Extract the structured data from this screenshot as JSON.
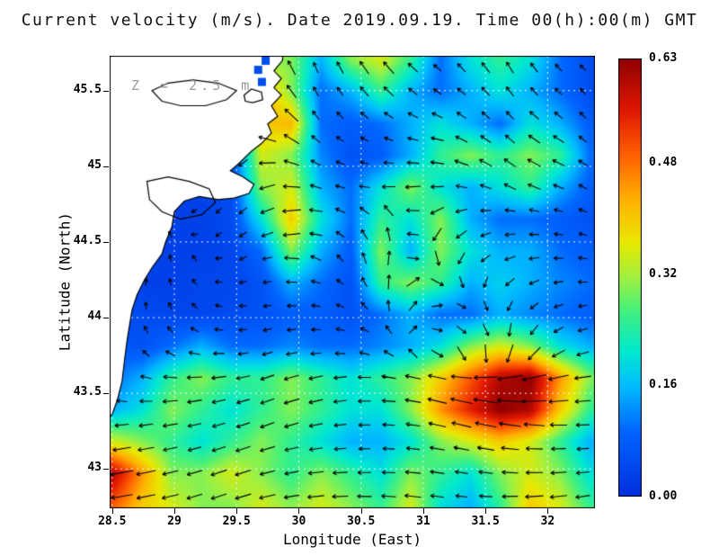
{
  "chart_data": {
    "type": "heatmap",
    "title": "Current velocity (m/s). Date 2019.09.19. Time 00(h):00(m) GMT",
    "annotation": "Z = 2.5 m",
    "xlabel": "Longitude (East)",
    "ylabel": "Latitude (North)",
    "units": "m/s",
    "x_tick_values": [
      28.5,
      29,
      29.5,
      30,
      30.5,
      31,
      31.5,
      32
    ],
    "x_tick_labels": [
      "28.5",
      "29",
      "29.5",
      "30",
      "30.5",
      "31",
      "31.5",
      "32"
    ],
    "y_tick_values": [
      43,
      43.5,
      44,
      44.5,
      45,
      45.5
    ],
    "y_tick_labels": [
      "43",
      "43.5",
      "44",
      "44.5",
      "45",
      "45.5"
    ],
    "colorbar": {
      "tick_values": [
        0.63,
        0.48,
        0.32,
        0.16,
        0
      ],
      "tick_labels": [
        "0.63",
        "0.48",
        "0.32",
        "0.16",
        "0.00"
      ],
      "min": 0,
      "max": 0.63
    },
    "lon_range": [
      28.48,
      32.38
    ],
    "lat_range": [
      42.74,
      45.73
    ],
    "vmin": 0,
    "vmax": 0.63,
    "gridline_lons": [
      28.5,
      29,
      29.5,
      30,
      30.5,
      31,
      31.5,
      32
    ],
    "gridline_lats": [
      43,
      43.5,
      44,
      44.5,
      45,
      45.5
    ],
    "colormap": [
      [
        0.0,
        "#0030dd"
      ],
      [
        0.15,
        "#0066ff"
      ],
      [
        0.25,
        "#00bbff"
      ],
      [
        0.33,
        "#00e8d0"
      ],
      [
        0.42,
        "#40f080"
      ],
      [
        0.5,
        "#a0f040"
      ],
      [
        0.58,
        "#e8e800"
      ],
      [
        0.68,
        "#ffb000"
      ],
      [
        0.78,
        "#ff6000"
      ],
      [
        0.88,
        "#e01800"
      ],
      [
        1.0,
        "#900000"
      ]
    ],
    "speed_grid": {
      "lons": [
        28.5,
        28.74,
        28.98,
        29.22,
        29.46,
        29.7,
        29.94,
        30.18,
        30.42,
        30.66,
        30.9,
        31.14,
        31.38,
        31.62,
        31.86,
        32.1,
        32.34
      ],
      "lats": [
        45.7,
        45.49,
        45.28,
        45.07,
        44.86,
        44.65,
        44.44,
        44.23,
        44.02,
        43.81,
        43.6,
        43.39,
        43.18,
        42.97,
        42.76
      ],
      "values": [
        [
          0.03,
          0.03,
          0.03,
          0.03,
          0.05,
          0.3,
          0.3,
          0.15,
          0.3,
          0.35,
          0.25,
          0.1,
          0.2,
          0.25,
          0.2,
          0.1,
          0.05
        ],
        [
          0.03,
          0.03,
          0.03,
          0.03,
          0.05,
          0.45,
          0.3,
          0.1,
          0.15,
          0.25,
          0.15,
          0.1,
          0.15,
          0.2,
          0.15,
          0.1,
          0.05
        ],
        [
          0.03,
          0.03,
          0.03,
          0.03,
          0.05,
          0.4,
          0.42,
          0.1,
          0.08,
          0.1,
          0.15,
          0.2,
          0.15,
          0.1,
          0.2,
          0.15,
          0.08
        ],
        [
          0.03,
          0.03,
          0.03,
          0.03,
          0.05,
          0.35,
          0.3,
          0.12,
          0.06,
          0.08,
          0.15,
          0.25,
          0.3,
          0.25,
          0.3,
          0.25,
          0.1
        ],
        [
          0.03,
          0.03,
          0.03,
          0.03,
          0.05,
          0.3,
          0.35,
          0.15,
          0.1,
          0.2,
          0.3,
          0.2,
          0.15,
          0.2,
          0.25,
          0.15,
          0.08
        ],
        [
          0.03,
          0.03,
          0.03,
          0.03,
          0.05,
          0.2,
          0.4,
          0.2,
          0.1,
          0.25,
          0.2,
          0.3,
          0.15,
          0.1,
          0.1,
          0.08,
          0.06
        ],
        [
          0.03,
          0.03,
          0.03,
          0.03,
          0.04,
          0.1,
          0.3,
          0.15,
          0.08,
          0.3,
          0.15,
          0.3,
          0.2,
          0.15,
          0.15,
          0.1,
          0.08
        ],
        [
          0.03,
          0.03,
          0.03,
          0.04,
          0.04,
          0.06,
          0.15,
          0.1,
          0.06,
          0.25,
          0.3,
          0.25,
          0.15,
          0.18,
          0.15,
          0.12,
          0.1
        ],
        [
          0.05,
          0.05,
          0.04,
          0.04,
          0.05,
          0.06,
          0.08,
          0.08,
          0.06,
          0.1,
          0.15,
          0.1,
          0.1,
          0.15,
          0.12,
          0.1,
          0.08
        ],
        [
          0.08,
          0.06,
          0.1,
          0.15,
          0.1,
          0.1,
          0.12,
          0.1,
          0.1,
          0.12,
          0.15,
          0.2,
          0.3,
          0.35,
          0.3,
          0.2,
          0.15
        ],
        [
          0.1,
          0.15,
          0.25,
          0.3,
          0.25,
          0.25,
          0.3,
          0.25,
          0.2,
          0.25,
          0.3,
          0.4,
          0.5,
          0.6,
          0.63,
          0.45,
          0.3
        ],
        [
          0.15,
          0.2,
          0.3,
          0.25,
          0.2,
          0.25,
          0.3,
          0.25,
          0.2,
          0.2,
          0.3,
          0.45,
          0.55,
          0.63,
          0.6,
          0.4,
          0.25
        ],
        [
          0.35,
          0.3,
          0.25,
          0.2,
          0.25,
          0.3,
          0.25,
          0.2,
          0.15,
          0.15,
          0.2,
          0.3,
          0.35,
          0.4,
          0.35,
          0.25,
          0.15
        ],
        [
          0.6,
          0.45,
          0.3,
          0.3,
          0.35,
          0.3,
          0.25,
          0.3,
          0.25,
          0.2,
          0.3,
          0.25,
          0.2,
          0.3,
          0.35,
          0.3,
          0.2
        ],
        [
          0.5,
          0.4,
          0.35,
          0.3,
          0.3,
          0.35,
          0.3,
          0.35,
          0.3,
          0.25,
          0.35,
          0.2,
          0.15,
          0.25,
          0.4,
          0.35,
          0.25
        ]
      ]
    },
    "vectors": {
      "lons": [
        28.5,
        28.82,
        29.14,
        29.46,
        29.78,
        30.1,
        30.42,
        30.74,
        31.06,
        31.38,
        31.7,
        32.02,
        32.34
      ],
      "lats": [
        45.7,
        45.43,
        45.17,
        44.9,
        44.63,
        44.37,
        44.1,
        43.83,
        43.57,
        43.3,
        43.03,
        42.76
      ],
      "angles_deg": [
        [
          90,
          90,
          200,
          150,
          120,
          110,
          120,
          130,
          140,
          130,
          120,
          130,
          140
        ],
        [
          90,
          90,
          210,
          220,
          140,
          120,
          130,
          140,
          150,
          140,
          130,
          140,
          130
        ],
        [
          90,
          90,
          215,
          230,
          160,
          140,
          150,
          160,
          170,
          150,
          140,
          150,
          140
        ],
        [
          80,
          85,
          220,
          235,
          190,
          160,
          170,
          190,
          180,
          160,
          150,
          160,
          150
        ],
        [
          75,
          80,
          210,
          225,
          200,
          180,
          140,
          110,
          220,
          200,
          180,
          170,
          160
        ],
        [
          70,
          75,
          120,
          210,
          190,
          160,
          120,
          80,
          300,
          230,
          200,
          185,
          170
        ],
        [
          80,
          95,
          130,
          180,
          185,
          175,
          150,
          90,
          20,
          320,
          240,
          200,
          185
        ],
        [
          110,
          130,
          160,
          185,
          195,
          185,
          170,
          140,
          340,
          310,
          270,
          220,
          195
        ],
        [
          160,
          175,
          185,
          190,
          200,
          195,
          185,
          175,
          165,
          170,
          180,
          190,
          185
        ],
        [
          185,
          188,
          192,
          198,
          200,
          192,
          184,
          176,
          168,
          166,
          172,
          178,
          182
        ],
        [
          190,
          192,
          196,
          200,
          194,
          188,
          182,
          178,
          172,
          170,
          176,
          182,
          186
        ],
        [
          188,
          192,
          196,
          198,
          192,
          186,
          180,
          176,
          172,
          176,
          182,
          186,
          190
        ]
      ]
    },
    "coastline_polygon": [
      [
        28.4,
        45.8
      ],
      [
        29.87,
        45.8
      ],
      [
        29.87,
        45.7
      ],
      [
        29.8,
        45.63
      ],
      [
        29.86,
        45.58
      ],
      [
        29.8,
        45.52
      ],
      [
        29.86,
        45.47
      ],
      [
        29.78,
        45.4
      ],
      [
        29.83,
        45.33
      ],
      [
        29.75,
        45.28
      ],
      [
        29.78,
        45.22
      ],
      [
        29.7,
        45.15
      ],
      [
        29.62,
        45.1
      ],
      [
        29.52,
        45.02
      ],
      [
        29.45,
        44.97
      ],
      [
        29.55,
        44.93
      ],
      [
        29.64,
        44.88
      ],
      [
        29.6,
        44.82
      ],
      [
        29.48,
        44.79
      ],
      [
        29.35,
        44.78
      ],
      [
        29.2,
        44.8
      ],
      [
        29.08,
        44.77
      ],
      [
        29.0,
        44.7
      ],
      [
        28.98,
        44.6
      ],
      [
        28.93,
        44.5
      ],
      [
        28.9,
        44.42
      ],
      [
        28.82,
        44.33
      ],
      [
        28.76,
        44.25
      ],
      [
        28.7,
        44.15
      ],
      [
        28.66,
        44.05
      ],
      [
        28.64,
        43.95
      ],
      [
        28.62,
        43.85
      ],
      [
        28.6,
        43.72
      ],
      [
        28.58,
        43.58
      ],
      [
        28.54,
        43.45
      ],
      [
        28.5,
        43.36
      ],
      [
        28.4,
        43.28
      ]
    ],
    "lakes": [
      [
        [
          28.82,
          45.5
        ],
        [
          28.95,
          45.55
        ],
        [
          29.15,
          45.57
        ],
        [
          29.35,
          45.55
        ],
        [
          29.5,
          45.5
        ],
        [
          29.42,
          45.44
        ],
        [
          29.25,
          45.4
        ],
        [
          29.05,
          45.4
        ],
        [
          28.9,
          45.43
        ]
      ],
      [
        [
          29.56,
          45.47
        ],
        [
          29.62,
          45.51
        ],
        [
          29.7,
          45.49
        ],
        [
          29.71,
          45.44
        ],
        [
          29.63,
          45.42
        ],
        [
          29.57,
          45.43
        ]
      ],
      [
        [
          28.78,
          44.9
        ],
        [
          28.95,
          44.93
        ],
        [
          29.12,
          44.9
        ],
        [
          29.28,
          44.85
        ],
        [
          29.33,
          44.76
        ],
        [
          29.22,
          44.68
        ],
        [
          29.05,
          44.65
        ],
        [
          28.9,
          44.7
        ],
        [
          28.8,
          44.78
        ]
      ]
    ],
    "sea_cells": [
      [
        29.67,
        45.64
      ],
      [
        29.7,
        45.56
      ],
      [
        29.73,
        45.7
      ]
    ]
  }
}
